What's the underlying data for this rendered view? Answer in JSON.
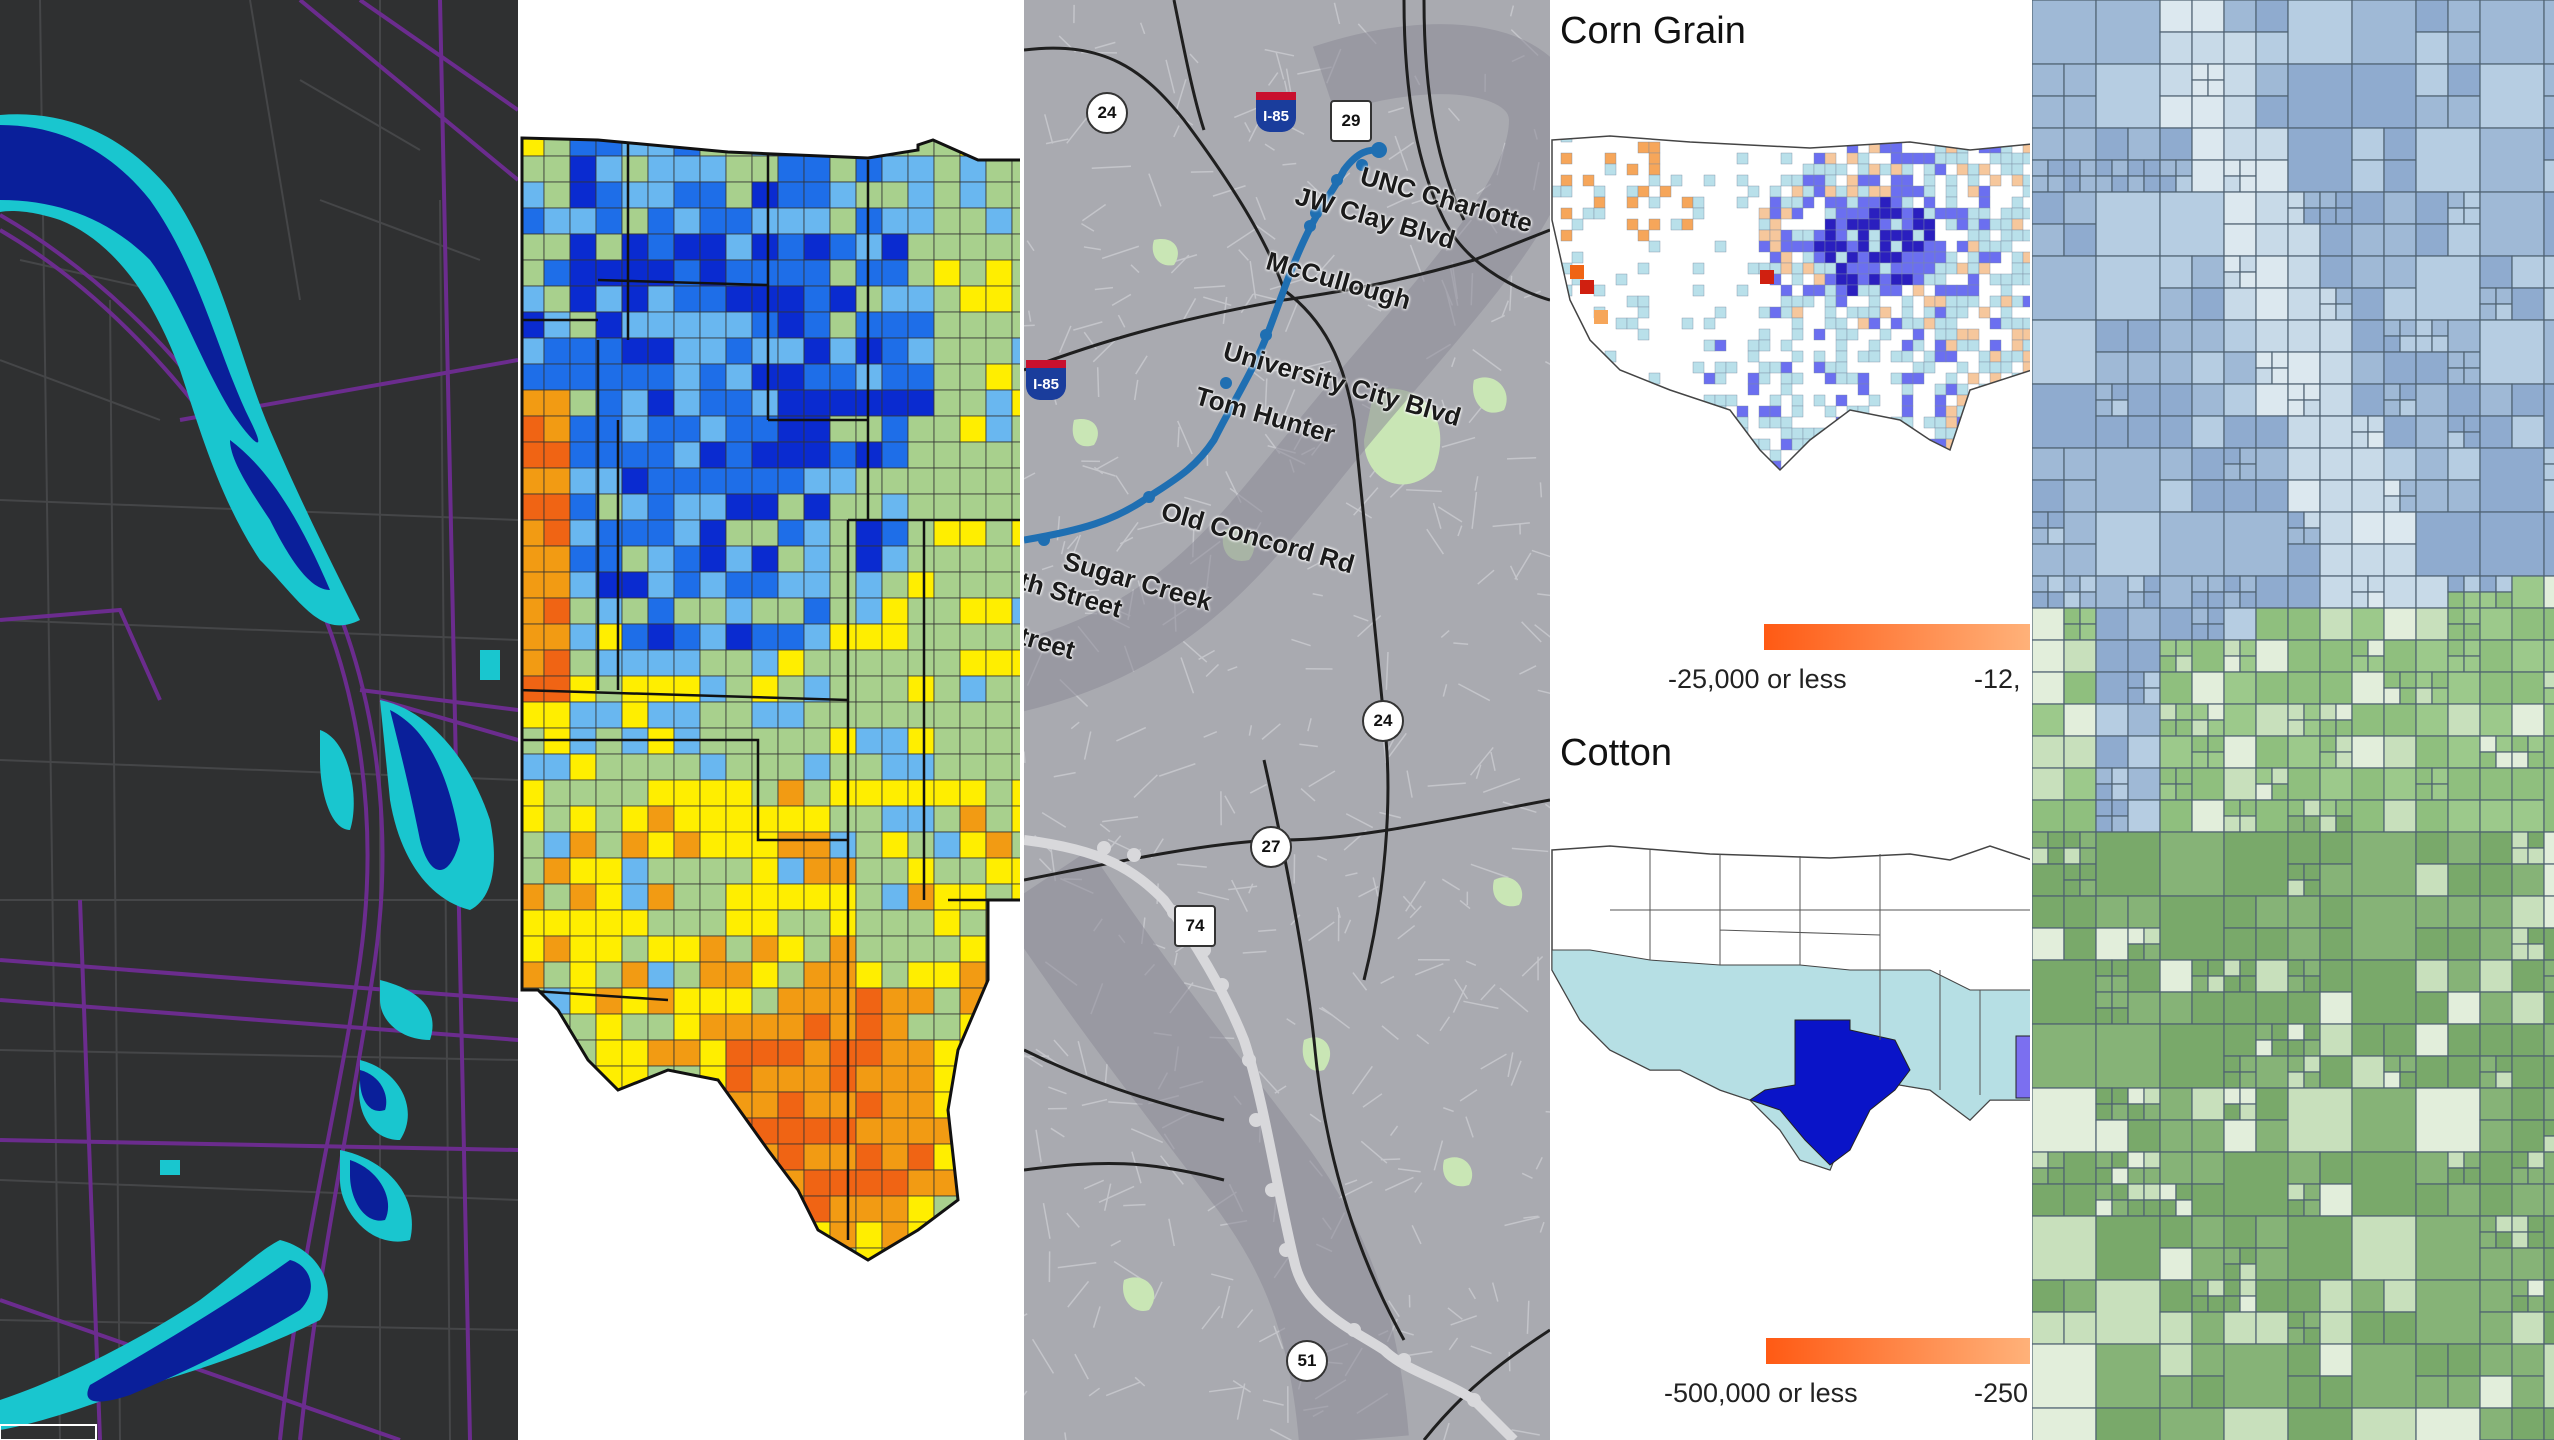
{
  "panels": {
    "flood_map": {
      "name": "Flood inundation map"
    },
    "us_county_map": {
      "name": "County map of central US"
    },
    "transit_map": {
      "name": "Charlotte light rail map",
      "stations": [
        "UNC Charlotte",
        "JW Clay Blvd",
        "McCullough",
        "University City Blvd",
        "Tom Hunter",
        "Old Concord Rd",
        "Sugar Creek",
        "th Street",
        "treet"
      ],
      "route_shields": [
        "24",
        "29",
        "24",
        "27",
        "74",
        "51"
      ],
      "interstate_shields": [
        "I-85",
        "I-85"
      ]
    },
    "crop_maps": {
      "corn": {
        "title": "Corn Grain",
        "legend_low": "-25,000 or less",
        "legend_mid": "-12,"
      },
      "cotton": {
        "title": "Cotton",
        "legend_low": "-500,000 or less",
        "legend_mid": "-250"
      }
    },
    "grid_map": {
      "name": "Quadtree grid map"
    }
  },
  "colors": {
    "flood_dark_blue": "#0a1f9a",
    "flood_cyan": "#19c6cf",
    "road_purple": "#6b2c8e",
    "county_green": "#a8d08d",
    "county_blue": "#1e6ee8",
    "county_yellow": "#ffee00",
    "county_orange": "#f29b13",
    "rail_blue": "#1f6fb2",
    "grid_blue": "#9fb9d6",
    "grid_green": "#8fbf7e"
  }
}
